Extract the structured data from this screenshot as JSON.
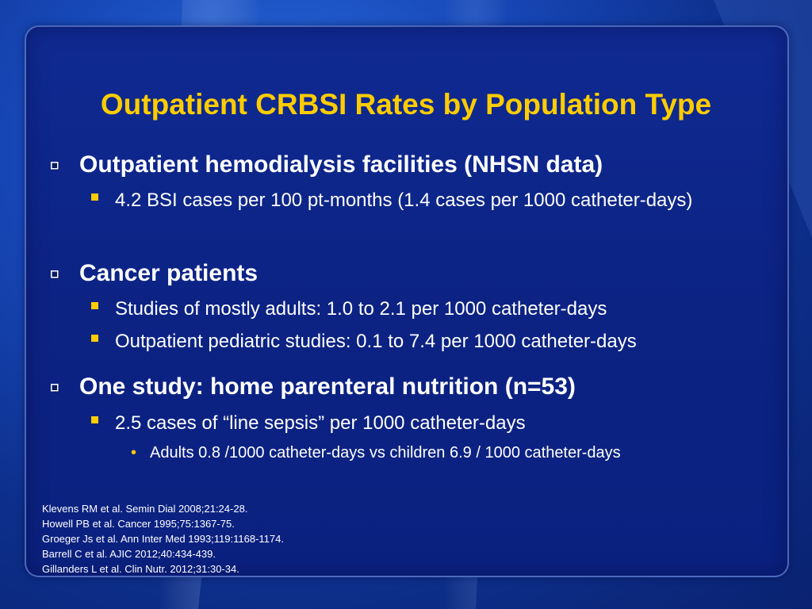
{
  "slide": {
    "title": "Outpatient CRBSI Rates by Population Type",
    "sections": [
      {
        "heading": "Outpatient hemodialysis facilities (NHSN data)",
        "items": [
          {
            "text": "4.2 BSI cases per 100 pt-months (1.4 cases per 1000 catheter-days)"
          }
        ]
      },
      {
        "heading": "Cancer patients",
        "items": [
          {
            "text": "Studies of mostly adults: 1.0 to 2.1 per 1000 catheter-days"
          },
          {
            "text": "Outpatient pediatric studies: 0.1 to 7.4 per 1000 catheter-days"
          }
        ]
      },
      {
        "heading": "One study: home parenteral nutrition (n=53)",
        "items": [
          {
            "text": "2.5 cases of “line sepsis” per 1000 catheter-days",
            "subitems": [
              "Adults 0.8 /1000 catheter-days vs children 6.9 / 1000 catheter-days"
            ]
          }
        ]
      }
    ],
    "references": [
      "Klevens RM et al. Semin Dial 2008;21:24-28.",
      "Howell PB et al. Cancer 1995;75:1367-75.",
      "Groeger Js et al. Ann Inter Med 1993;119:1168-1174.",
      "Barrell C et al. AJIC 2012;40:434-439.",
      "Gillanders L et al. Clin Nutr. 2012;31:30-34."
    ]
  },
  "colors": {
    "title": "#ffcc00",
    "bullet": "#ffcc00",
    "text": "#ffffff",
    "panel": "#0c2384",
    "background": "#1748b8"
  },
  "icons": {
    "level1_bullet": "hollow-square-with-shadow",
    "level2_bullet": "filled-square",
    "level3_bullet": "round-dot"
  }
}
